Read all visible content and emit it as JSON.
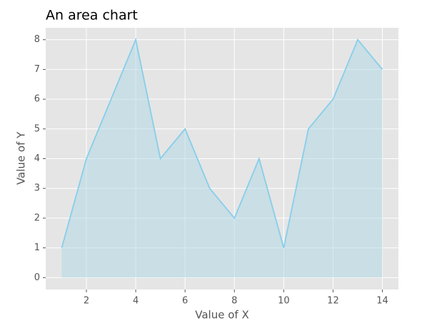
{
  "chart_data": {
    "type": "area",
    "title": "An area chart",
    "xlabel": "Value of X",
    "ylabel": "Value of Y",
    "x": [
      1,
      2,
      3,
      4,
      5,
      6,
      7,
      8,
      9,
      10,
      11,
      12,
      13,
      14
    ],
    "values": [
      1,
      4,
      6,
      8,
      4,
      5,
      3,
      2,
      4,
      1,
      5,
      6,
      8,
      7
    ],
    "color": "#87ceeb",
    "fill_color": "#add8e6",
    "xlim": [
      0.35,
      14.65
    ],
    "ylim": [
      -0.4,
      8.4
    ],
    "xticks": [
      2,
      4,
      6,
      8,
      10,
      12,
      14
    ],
    "yticks": [
      0,
      1,
      2,
      3,
      4,
      5,
      6,
      7,
      8
    ],
    "grid": true
  }
}
